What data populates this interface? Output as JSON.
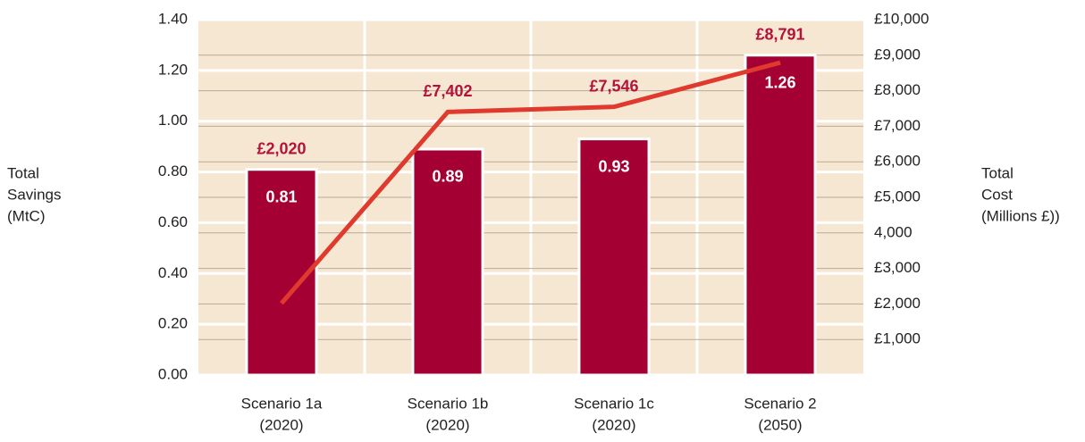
{
  "chart_data": {
    "type": "bar_line",
    "y_label": [
      "Total",
      "Savings",
      "(MtC)"
    ],
    "y2_label": [
      "Total",
      "Cost",
      "(Millions £))"
    ],
    "categories": [
      [
        "Scenario 1a",
        "(2020)"
      ],
      [
        "Scenario 1b",
        "(2020)"
      ],
      [
        "Scenario 1c",
        "(2020)"
      ],
      [
        "Scenario 2",
        "(2050)"
      ]
    ],
    "series": [
      {
        "type": "bar",
        "color": "#a50034",
        "values": [
          0.81,
          0.89,
          0.93,
          1.26
        ]
      },
      {
        "type": "line",
        "axis": "y2",
        "color": "#e03a2e",
        "values": [
          2020,
          7402,
          7546,
          8791
        ],
        "value_labels": [
          "£2,020",
          "£7,402",
          "£7,546",
          "£8,791"
        ]
      }
    ],
    "ylim": [
      0,
      1.4
    ],
    "yticks": [
      {
        "value": 0,
        "label": "0.00"
      },
      {
        "value": 0.2,
        "label": "0.20"
      },
      {
        "value": 0.4,
        "label": "0.40"
      },
      {
        "value": 0.6,
        "label": "0.60"
      },
      {
        "value": 0.8,
        "label": "0.80"
      },
      {
        "value": 1,
        "label": "1.00"
      },
      {
        "value": 1.2,
        "label": "1.20"
      },
      {
        "value": 1.4,
        "label": "1.40"
      }
    ],
    "y2lim": [
      0,
      10000
    ],
    "y2ticks": [
      {
        "value": 1000,
        "label": "£1,000"
      },
      {
        "value": 2000,
        "label": "£2,000"
      },
      {
        "value": 3000,
        "label": "£3,000"
      },
      {
        "value": 4000,
        "label": "4,000"
      },
      {
        "value": 5000,
        "label": "£5,000"
      },
      {
        "value": 6000,
        "label": "£6,000"
      },
      {
        "value": 7000,
        "label": "£7,000"
      },
      {
        "value": 8000,
        "label": "£8,000"
      },
      {
        "value": 9000,
        "label": "£9,000"
      },
      {
        "value": 10000,
        "label": "£10,000"
      }
    ],
    "grid": true
  }
}
